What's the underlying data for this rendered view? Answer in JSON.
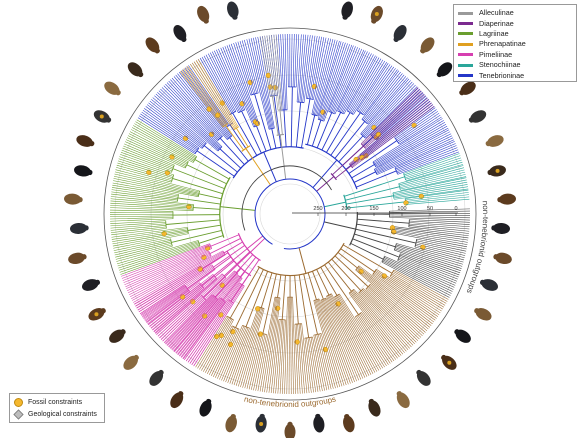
{
  "legend": {
    "entries": [
      {
        "label": "Alleculinae",
        "color": "#9a9a9a"
      },
      {
        "label": "Diaperinae",
        "color": "#7b2a8f"
      },
      {
        "label": "Lagriinae",
        "color": "#6a9e2f"
      },
      {
        "label": "Phrenapatinae",
        "color": "#e0a020"
      },
      {
        "label": "Pimeliinae",
        "color": "#d63fb0"
      },
      {
        "label": "Stenochiinae",
        "color": "#2aa69a"
      },
      {
        "label": "Tenebrioninae",
        "color": "#2436c8"
      }
    ]
  },
  "constraints_legend": {
    "fossil": {
      "label": "Fossil constraints",
      "color": "#f5b82e"
    },
    "geological": {
      "label": "Geological constraints",
      "color": "#bdbdbd"
    }
  },
  "time_axis": {
    "ticks": [
      "250",
      "200",
      "150",
      "100",
      "50",
      "0"
    ]
  },
  "arc_labels": {
    "bottom": "non-tenebrionid outgroups",
    "right": "non-tenebrionid outgroups"
  },
  "colors": {
    "outgroup": "#9b6a30",
    "outgroup_right": "#444444",
    "ring": "#555555"
  }
}
